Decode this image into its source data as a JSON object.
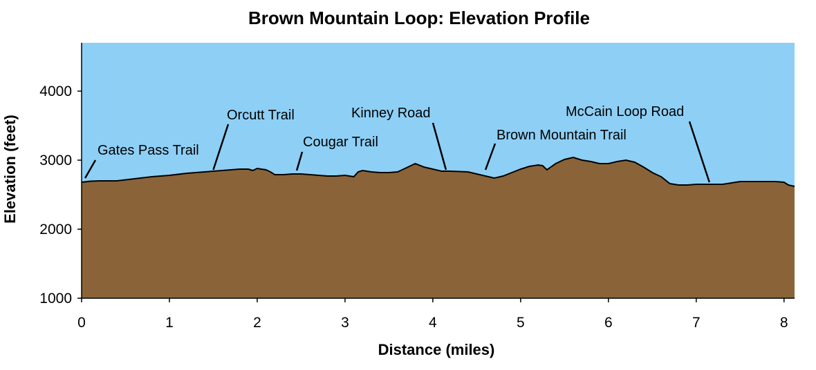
{
  "chart_data": {
    "type": "area",
    "title": "Brown Mountain Loop: Elevation Profile",
    "xlabel": "Distance (miles)",
    "ylabel": "Elevation (feet)",
    "xlim": [
      0,
      8.12
    ],
    "ylim": [
      1000,
      4700
    ],
    "xticks": [
      0,
      1,
      2,
      3,
      4,
      5,
      6,
      7,
      8
    ],
    "yticks": [
      1000,
      2000,
      3000,
      4000
    ],
    "grid": false,
    "colors": {
      "sky": "#8ecff5",
      "ground": "#8a6438",
      "outline": "#000000"
    },
    "series": [
      {
        "x": [
          0,
          0.1,
          0.2,
          0.4,
          0.6,
          0.8,
          1.0,
          1.2,
          1.4,
          1.5,
          1.6,
          1.8,
          1.9,
          1.95,
          2.0,
          2.1,
          2.15,
          2.2,
          2.3,
          2.4,
          2.5,
          2.6,
          2.7,
          2.8,
          2.9,
          3.0,
          3.05,
          3.1,
          3.15,
          3.2,
          3.3,
          3.4,
          3.5,
          3.6,
          3.7,
          3.8,
          3.9,
          4.0,
          4.1,
          4.2,
          4.4,
          4.5,
          4.6,
          4.7,
          4.8,
          4.9,
          5.0,
          5.1,
          5.2,
          5.25,
          5.3,
          5.4,
          5.5,
          5.6,
          5.7,
          5.8,
          5.9,
          6.0,
          6.1,
          6.2,
          6.3,
          6.4,
          6.5,
          6.6,
          6.7,
          6.8,
          6.9,
          7.0,
          7.1,
          7.3,
          7.4,
          7.5,
          7.7,
          7.9,
          8.0,
          8.05,
          8.12
        ],
        "y": [
          2680,
          2695,
          2700,
          2700,
          2730,
          2760,
          2780,
          2810,
          2830,
          2840,
          2850,
          2870,
          2870,
          2850,
          2880,
          2860,
          2830,
          2790,
          2790,
          2800,
          2800,
          2790,
          2780,
          2770,
          2770,
          2780,
          2770,
          2760,
          2830,
          2850,
          2830,
          2820,
          2820,
          2830,
          2890,
          2950,
          2900,
          2870,
          2840,
          2840,
          2830,
          2800,
          2770,
          2740,
          2770,
          2820,
          2870,
          2910,
          2930,
          2920,
          2860,
          2950,
          3010,
          3040,
          3000,
          2980,
          2950,
          2950,
          2980,
          3000,
          2970,
          2900,
          2820,
          2760,
          2660,
          2640,
          2640,
          2650,
          2650,
          2650,
          2670,
          2690,
          2690,
          2690,
          2680,
          2640,
          2620
        ]
      }
    ],
    "annotations": [
      {
        "label": "Gates Pass Trail",
        "x": 0.04,
        "y": 2740
      },
      {
        "label": "Orcutt Trail",
        "x": 1.5,
        "y": 2860
      },
      {
        "label": "Cougar Trail",
        "x": 2.45,
        "y": 2850
      },
      {
        "label": "Kinney Road",
        "x": 4.15,
        "y": 2860
      },
      {
        "label": "Brown Mountain Trail",
        "x": 4.6,
        "y": 2860
      },
      {
        "label": "McCain Loop Road",
        "x": 7.15,
        "y": 2680
      }
    ]
  }
}
